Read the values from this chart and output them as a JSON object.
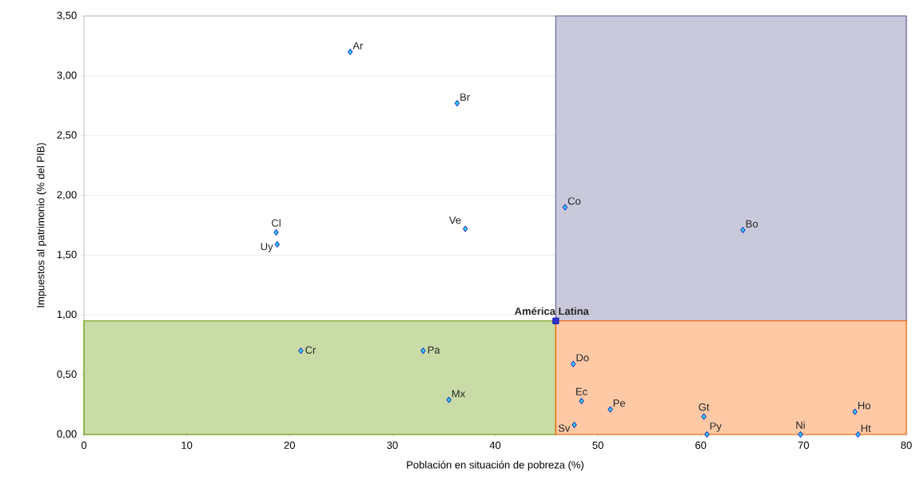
{
  "chart_data": {
    "type": "scatter",
    "xlabel": "Población en situación de pobreza (%)",
    "ylabel": "Impuestos al patrimonio (% del PIB)",
    "xlim": [
      0,
      80
    ],
    "ylim": [
      0,
      3.5
    ],
    "xticks": [
      0,
      10,
      20,
      30,
      40,
      50,
      60,
      70,
      80
    ],
    "yticks": [
      {
        "value": 0,
        "label": "0,00"
      },
      {
        "value": 0.5,
        "label": "0,50"
      },
      {
        "value": 1,
        "label": "1,00"
      },
      {
        "value": 1.5,
        "label": "1,50"
      },
      {
        "value": 2,
        "label": "2,00"
      },
      {
        "value": 2.5,
        "label": "2,50"
      },
      {
        "value": 3,
        "label": "3,00"
      },
      {
        "value": 3.5,
        "label": "3,50"
      }
    ],
    "grid": "y",
    "marker": "diamond",
    "series": [
      {
        "color": "#33ccff",
        "x": [
          25.9,
          36.3,
          18.7,
          18.8,
          37.1,
          46.8,
          64.1,
          21.1,
          33.0,
          35.5,
          47.6,
          48.4,
          51.2,
          47.7,
          60.3,
          60.6,
          69.7,
          75.0,
          75.3
        ],
        "values": [
          3.2,
          2.77,
          1.69,
          1.59,
          1.72,
          1.9,
          1.71,
          0.7,
          0.7,
          0.29,
          0.59,
          0.28,
          0.21,
          0.08,
          0.15,
          0,
          0,
          0.19,
          0
        ]
      },
      {
        "name": "América Latina",
        "color": "#3333cc",
        "marker": "square",
        "x": [
          45.9
        ],
        "values": [
          0.95
        ]
      }
    ],
    "bands": [
      {
        "axis": "y",
        "from": 0,
        "to": 0.95,
        "color": "#669900"
      },
      {
        "axis": "x",
        "from": 45.9,
        "to": 80,
        "color": "#666699"
      },
      {
        "axis": "y",
        "from": 0,
        "to": 0.95,
        "color": "#ff6600"
      }
    ],
    "annotations": [
      {
        "text": "Ar",
        "x": 25.9,
        "y": 3.2
      },
      {
        "text": "Br",
        "x": 36.3,
        "y": 2.77
      },
      {
        "text": "Cl",
        "x": 18.7,
        "y": 1.69
      },
      {
        "text": "Uy",
        "x": 18.8,
        "y": 1.59
      },
      {
        "text": "Ve",
        "x": 37.1,
        "y": 1.72
      },
      {
        "text": "Co",
        "x": 46.8,
        "y": 1.9
      },
      {
        "text": "Bo",
        "x": 64.1,
        "y": 1.71
      },
      {
        "text": "Cr",
        "x": 21.1,
        "y": 0.7
      },
      {
        "text": "Pa",
        "x": 33.0,
        "y": 0.7
      },
      {
        "text": "Mx",
        "x": 35.5,
        "y": 0.29
      },
      {
        "text": "Do",
        "x": 47.6,
        "y": 0.59
      },
      {
        "text": "Ec",
        "x": 48.4,
        "y": 0.28
      },
      {
        "text": "Pe",
        "x": 51.2,
        "y": 0.21
      },
      {
        "text": "Sv",
        "x": 47.7,
        "y": 0.08
      },
      {
        "text": "Gt",
        "x": 60.3,
        "y": 0.15
      },
      {
        "text": "Py",
        "x": 60.6,
        "y": 0
      },
      {
        "text": "Ni",
        "x": 69.7,
        "y": 0
      },
      {
        "text": "Ho",
        "x": 75.0,
        "y": 0.19
      },
      {
        "text": "Ht",
        "x": 75.3,
        "y": 0
      }
    ]
  }
}
